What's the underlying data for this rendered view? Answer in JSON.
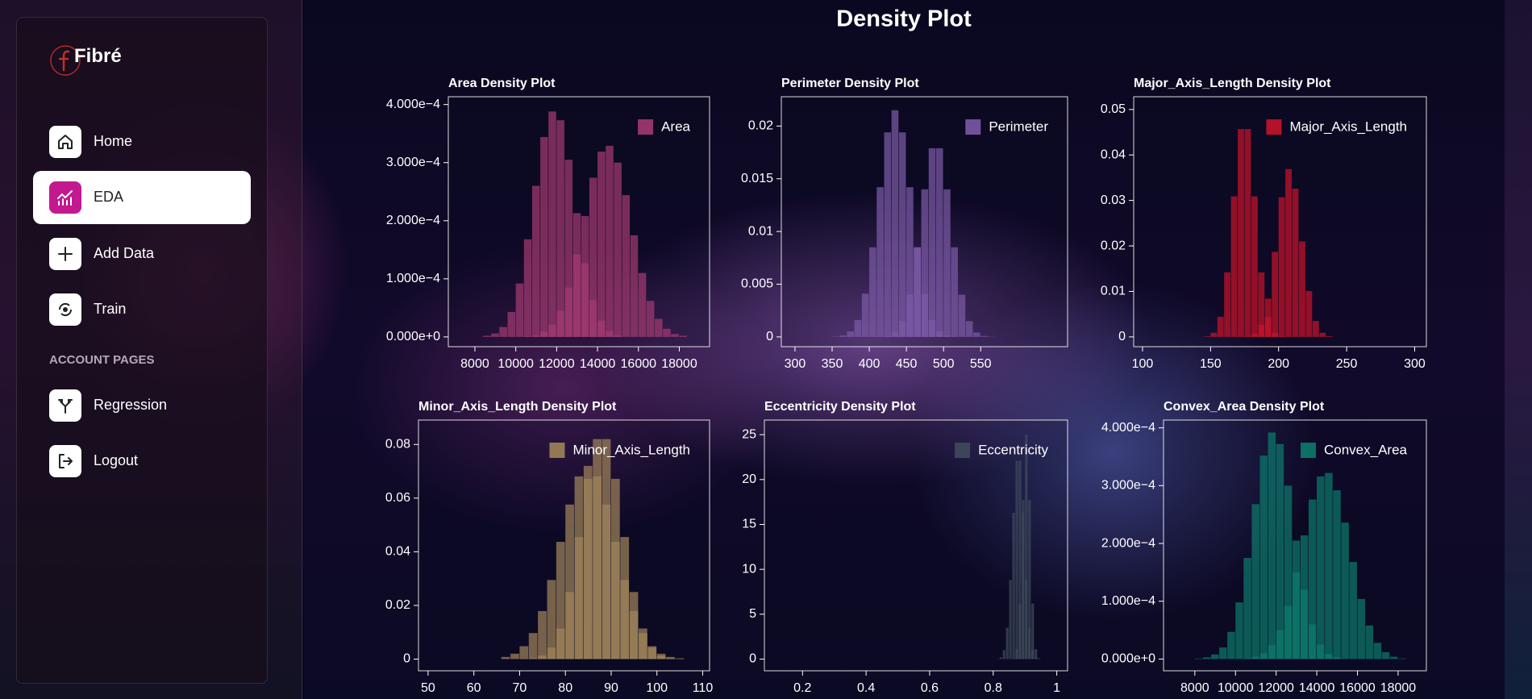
{
  "sidebar": {
    "brand": "Fibré",
    "nav": [
      "Home",
      "EDA",
      "Add Data",
      "Train"
    ],
    "section_title": "ACCOUNT PAGES",
    "account_nav": [
      "Regression",
      "Logout"
    ]
  },
  "page_title": "Density Plot",
  "chart_data": [
    {
      "type": "histogram",
      "title": "Area Density Plot",
      "legend": "upper right",
      "bins": [
        7200,
        7600,
        8000,
        8400,
        8800,
        9200,
        9600,
        10000,
        10400,
        10800,
        11200,
        11600,
        12000,
        12400,
        12800,
        13200,
        13600,
        14000,
        14400,
        14800,
        15200,
        15600,
        16000,
        16400,
        16800,
        17200,
        17600,
        18000,
        18400
      ],
      "series": [
        {
          "name": "Area",
          "color": "#a33a72",
          "values": [
            0,
            0,
            0,
            2e-06,
            6e-06,
            1.7e-05,
            4.3e-05,
            9.2e-05,
            0.000168,
            0.00026,
            0.000344,
            0.000388,
            0.000373,
            0.000305,
            0.000213,
            0.000127,
            6.4e-05,
            2.8e-05,
            1e-05,
            3e-06,
            0,
            0,
            0,
            0,
            0,
            0,
            0,
            0
          ]
        },
        {
          "color": "#a33a72",
          "values": [
            0,
            0,
            0,
            0,
            0,
            0,
            0,
            0,
            1e-06,
            3e-06,
            9e-06,
            2.1e-05,
            4.5e-05,
            8.5e-05,
            0.000142,
            0.000208,
            0.000274,
            0.000319,
            0.000329,
            0.0003,
            0.000244,
            0.000175,
            0.00011,
            6.2e-05,
            3.1e-05,
            1.4e-05,
            5e-06,
            2e-06
          ]
        }
      ],
      "xlim": [
        6700,
        19480
      ],
      "ylim": [
        -1.68e-05,
        0.0004134
      ],
      "xticks": [
        8000,
        10000,
        12000,
        14000,
        16000,
        18000
      ],
      "yticks": [
        {
          "value": 0,
          "label": "0.000e+0"
        },
        {
          "value": 0.0001,
          "label": "1.000e−4"
        },
        {
          "value": 0.0002,
          "label": "2.000e−4"
        },
        {
          "value": 0.0003,
          "label": "3.000e−4"
        },
        {
          "value": 0.0004,
          "label": "4.000e−4"
        }
      ]
    },
    {
      "type": "histogram",
      "title": "Perimeter Density Plot",
      "legend": "upper right",
      "bins": [
        330,
        340,
        350,
        360,
        370,
        380,
        390,
        400,
        410,
        420,
        430,
        440,
        450,
        460,
        470,
        480,
        490,
        500,
        510,
        520,
        530,
        540,
        550,
        560,
        570
      ],
      "series": [
        {
          "name": "Perimeter",
          "color": "#7b5aa6",
          "values": [
            0,
            0,
            3e-05,
            0.00014,
            0.00052,
            0.0016,
            0.0041,
            0.0085,
            0.0142,
            0.0194,
            0.0215,
            0.0194,
            0.0142,
            0.0085,
            0.0041,
            0.0016,
            0.00052,
            0.00014,
            3e-05,
            0,
            0,
            0,
            0,
            0
          ]
        },
        {
          "color": "#7b5aa6",
          "values": [
            0,
            0,
            0,
            0,
            0,
            0,
            0,
            0,
            2e-05,
            9e-05,
            0.00042,
            0.0015,
            0.004,
            0.0085,
            0.014,
            0.0179,
            0.0179,
            0.014,
            0.0085,
            0.004,
            0.0015,
            0.00042,
            9e-05,
            2e-05
          ]
        }
      ],
      "xlim": [
        281.6,
        667
      ],
      "ylim": [
        -0.000926,
        0.02278
      ],
      "xticks": [
        300,
        350,
        400,
        450,
        500,
        550
      ],
      "yticks": [
        0,
        0.005,
        0.01,
        0.015,
        0.02
      ]
    },
    {
      "type": "histogram",
      "title": "Major_Axis_Length Density Plot",
      "legend": "upper right",
      "bins": [
        140,
        145,
        150,
        155,
        160,
        165,
        170,
        175,
        180,
        185,
        190,
        195,
        200,
        205,
        210,
        215,
        220,
        225,
        230,
        235,
        240
      ],
      "series": [
        {
          "name": "Major_Axis_Length",
          "color": "#c8142a",
          "values": [
            0,
            0.00013,
            0.0009,
            0.0044,
            0.0142,
            0.0309,
            0.0457,
            0.0457,
            0.0309,
            0.0142,
            0.0044,
            0.0009,
            0.00013,
            0,
            0,
            0,
            0,
            0,
            0,
            0
          ]
        },
        {
          "color": "#c8142a",
          "values": [
            0,
            0,
            0,
            0,
            0,
            0,
            2e-05,
            0.00012,
            0.00067,
            0.0027,
            0.0084,
            0.0187,
            0.0307,
            0.0369,
            0.0326,
            0.021,
            0.0101,
            0.0035,
            0.0009,
            0.00017
          ]
        }
      ],
      "xlim": [
        93.5,
        308.6
      ],
      "ylim": [
        -0.00215,
        0.0528
      ],
      "xticks": [
        100,
        150,
        200,
        250,
        300
      ],
      "yticks": [
        0,
        0.01,
        0.02,
        0.03,
        0.04,
        0.05
      ]
    },
    {
      "type": "histogram",
      "title": "Minor_Axis_Length Density Plot",
      "legend": "upper right",
      "bins": [
        66,
        68,
        70,
        72,
        74,
        76,
        78,
        80,
        82,
        84,
        86,
        88,
        90,
        92,
        94,
        96,
        98,
        100,
        102,
        104,
        106
      ],
      "series": [
        {
          "name": "Minor_Axis_Length",
          "color": "#a0845a",
          "values": [
            0.0008,
            0.002,
            0.0048,
            0.0097,
            0.0179,
            0.0295,
            0.0437,
            0.0576,
            0.0681,
            0.072,
            0.0681,
            0.0576,
            0.0437,
            0.0295,
            0.0179,
            0.0097,
            0.0048,
            0.002,
            0.0008,
            0.0003
          ]
        },
        {
          "color": "#a0845a",
          "values": [
            0,
            0,
            0.0001,
            0.0003,
            0.0013,
            0.0043,
            0.0114,
            0.025,
            0.0455,
            0.0672,
            0.082,
            0.082,
            0.0672,
            0.0455,
            0.025,
            0.0114,
            0.0043,
            0.0013,
            0.0003,
            0.0001
          ]
        }
      ],
      "xlim": [
        47.9,
        111.5
      ],
      "ylim": [
        -0.00436,
        0.0891
      ],
      "xticks": [
        50,
        60,
        70,
        80,
        90,
        100,
        110
      ],
      "yticks": [
        0,
        0.02,
        0.04,
        0.06,
        0.08
      ]
    },
    {
      "type": "histogram",
      "title": "Eccentricity Density Plot",
      "legend": "upper right",
      "bins": [
        0.8,
        0.81,
        0.82,
        0.83,
        0.84,
        0.85,
        0.86,
        0.87,
        0.88,
        0.89,
        0.9,
        0.91,
        0.92,
        0.93,
        0.94,
        0.95,
        0.96
      ],
      "series": [
        {
          "name": "Eccentricity",
          "color": "#3f4a5c",
          "values": [
            0,
            0.03,
            0.2,
            1,
            3.5,
            8.8,
            16.3,
            22.1,
            22.1,
            16.3,
            8.8,
            3.5,
            1,
            0.2,
            0.03,
            0
          ]
        },
        {
          "color": "#3f4a5c",
          "values": [
            0,
            0,
            0,
            0,
            0,
            0,
            0.1,
            1.1,
            6.2,
            17.7,
            25,
            17.7,
            6.2,
            1.1,
            0.1,
            0
          ]
        }
      ],
      "xlim": [
        0.08,
        1.034
      ],
      "ylim": [
        -1.3,
        26.63
      ],
      "xticks": [
        0.2,
        0.4,
        0.6,
        0.8,
        1
      ],
      "yticks": [
        0,
        5,
        10,
        15,
        20,
        25
      ]
    },
    {
      "type": "histogram",
      "title": "Convex_Area Density Plot",
      "legend": "upper right",
      "bins": [
        7200,
        7600,
        8000,
        8400,
        8800,
        9200,
        9600,
        10000,
        10400,
        10800,
        11200,
        11600,
        12000,
        12400,
        12800,
        13200,
        13600,
        14000,
        14400,
        14800,
        15200,
        15600,
        16000,
        16400,
        16800,
        17200,
        17600,
        18000,
        18400
      ],
      "series": [
        {
          "name": "Convex_Area",
          "color": "#0d7a6c",
          "values": [
            0,
            0,
            1e-06,
            3e-06,
            8e-06,
            2e-05,
            4.7e-05,
            9.8e-05,
            0.000175,
            0.000268,
            0.000352,
            0.000392,
            0.000372,
            0.0003,
            0.000205,
            0.00012,
            6e-05,
            2.5e-05,
            9e-06,
            3e-06,
            0,
            0,
            0,
            0,
            0,
            0,
            0,
            0
          ]
        },
        {
          "color": "#0d7a6c",
          "values": [
            0,
            0,
            0,
            0,
            0,
            0,
            0,
            0,
            1e-06,
            4e-06,
            1e-05,
            2.4e-05,
            5e-05,
            9.2e-05,
            0.00015,
            0.000214,
            0.000276,
            0.000316,
            0.000322,
            0.000292,
            0.000236,
            0.000168,
            0.000104,
            5.8e-05,
            2.8e-05,
            1.2e-05,
            4e-06,
            1e-06
          ]
        }
      ],
      "xlim": [
        6460,
        19390
      ],
      "ylim": [
        -2.03e-05,
        0.0004135
      ],
      "xticks": [
        8000,
        10000,
        12000,
        14000,
        16000,
        18000
      ],
      "yticks": [
        {
          "value": 0,
          "label": "0.000e+0"
        },
        {
          "value": 0.0001,
          "label": "1.000e−4"
        },
        {
          "value": 0.0002,
          "label": "2.000e−4"
        },
        {
          "value": 0.0003,
          "label": "3.000e−4"
        },
        {
          "value": 0.0004,
          "label": "4.000e−4"
        }
      ]
    }
  ]
}
